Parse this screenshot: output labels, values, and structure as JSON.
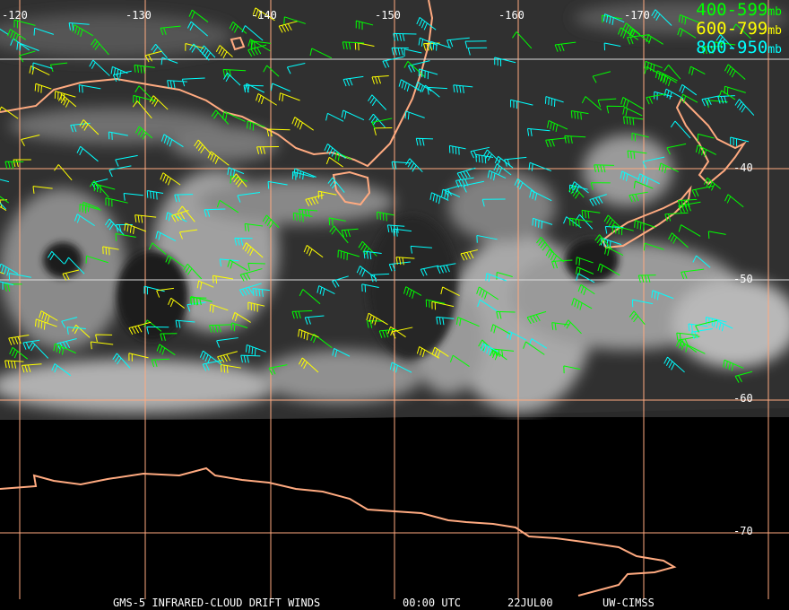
{
  "legend": [
    {
      "range": "400-599",
      "unit": "mb",
      "color": "#00ff00"
    },
    {
      "range": "600-799",
      "unit": "mb",
      "color": "#ffff00"
    },
    {
      "range": "800-950",
      "unit": "mb",
      "color": "#00ffff"
    }
  ],
  "longitude_labels": [
    "-120",
    "-130",
    "-140",
    "-150",
    "-160",
    "-170"
  ],
  "latitude_labels": [
    "-40",
    "-50",
    "-60",
    "-70"
  ],
  "footer": {
    "product": "GMS-5 INFRARED-CLOUD DRIFT WINDS",
    "time": "00:00 UTC",
    "date": "22JUL00",
    "source": "UW-CIMSS"
  },
  "colors": {
    "coastline": "#ffaa80",
    "grid_white": "#dddddd",
    "grid_salmon": "#ffaa80"
  }
}
